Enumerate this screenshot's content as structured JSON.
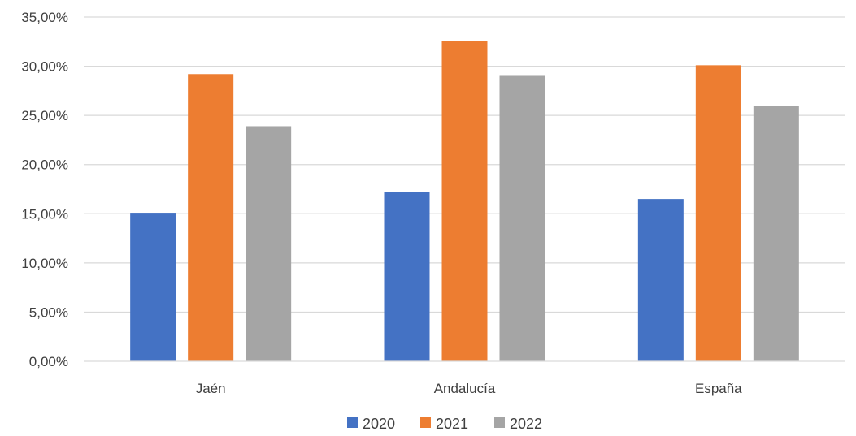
{
  "chart_data": {
    "type": "bar",
    "categories": [
      "Jaén",
      "Andalucía",
      "España"
    ],
    "series": [
      {
        "name": "2020",
        "values": [
          15.1,
          17.2,
          16.5
        ],
        "color": "#4472C4"
      },
      {
        "name": "2021",
        "values": [
          29.2,
          32.6,
          30.1
        ],
        "color": "#ED7D31"
      },
      {
        "name": "2022",
        "values": [
          23.9,
          29.1,
          26.0
        ],
        "color": "#A5A5A5"
      }
    ],
    "ylim": [
      0,
      35
    ],
    "yticks": [
      0,
      5,
      10,
      15,
      20,
      25,
      30,
      35
    ],
    "ytick_labels": [
      "0,00%",
      "5,00%",
      "10,00%",
      "15,00%",
      "20,00%",
      "25,00%",
      "30,00%",
      "35,00%"
    ],
    "grid": true,
    "legend_position": "bottom",
    "title": "",
    "xlabel": "",
    "ylabel": ""
  }
}
